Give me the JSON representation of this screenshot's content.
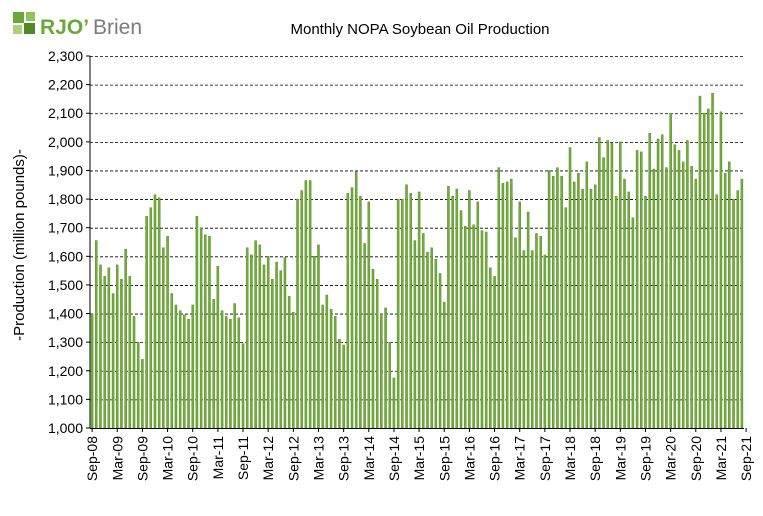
{
  "logo": {
    "text_main": "RJO",
    "text_rest": "Brien",
    "apostrophe": "’"
  },
  "colors": {
    "bar": "#72ad3a",
    "bar_edge": "#4f8422",
    "logo_green": "#6aa83a",
    "logo_gray": "#7b7b7b"
  },
  "chart_data": {
    "type": "bar",
    "title": "Monthly NOPA Soybean Oil Production",
    "ylabel": "-Production (million pounds)-",
    "xlabel": "",
    "ylim": [
      1000,
      2300
    ],
    "yticks": [
      1000,
      1100,
      1200,
      1300,
      1400,
      1500,
      1600,
      1700,
      1800,
      1900,
      2000,
      2100,
      2200,
      2300
    ],
    "ytick_labels": [
      "1,000",
      "1,100",
      "1,200",
      "1,300",
      "1,400",
      "1,500",
      "1,600",
      "1,700",
      "1,800",
      "1,900",
      "2,000",
      "2,100",
      "2,200",
      "2,300"
    ],
    "grid": "horizontal dashed",
    "xtick_labels": [
      "Sep-08",
      "Mar-09",
      "Sep-09",
      "Mar-10",
      "Sep-10",
      "Mar-11",
      "Sep-11",
      "Mar-12",
      "Sep-12",
      "Mar-13",
      "Sep-13",
      "Mar-14",
      "Sep-14",
      "Mar-15",
      "Sep-15",
      "Mar-16",
      "Sep-16",
      "Mar-17",
      "Sep-17",
      "Mar-18",
      "Sep-18",
      "Mar-19",
      "Sep-19",
      "Mar-20",
      "Sep-20",
      "Mar-21",
      "Sep-21"
    ],
    "start_month": "Sep-08",
    "values": [
      1400,
      1655,
      1570,
      1530,
      1560,
      1470,
      1570,
      1520,
      1625,
      1530,
      1390,
      1300,
      1240,
      1740,
      1770,
      1815,
      1805,
      1630,
      1670,
      1470,
      1430,
      1410,
      1395,
      1380,
      1430,
      1740,
      1700,
      1675,
      1670,
      1450,
      1565,
      1410,
      1390,
      1380,
      1435,
      1385,
      1295,
      1630,
      1605,
      1655,
      1640,
      1570,
      1600,
      1520,
      1580,
      1550,
      1595,
      1460,
      1405,
      1800,
      1830,
      1865,
      1865,
      1600,
      1640,
      1430,
      1465,
      1415,
      1390,
      1310,
      1290,
      1820,
      1840,
      1895,
      1810,
      1645,
      1790,
      1555,
      1520,
      1400,
      1420,
      1300,
      1175,
      1800,
      1800,
      1850,
      1820,
      1655,
      1825,
      1680,
      1615,
      1630,
      1590,
      1540,
      1440,
      1845,
      1810,
      1835,
      1760,
      1705,
      1830,
      1710,
      1790,
      1690,
      1685,
      1560,
      1530,
      1910,
      1855,
      1860,
      1870,
      1665,
      1790,
      1620,
      1755,
      1620,
      1680,
      1670,
      1605,
      1900,
      1880,
      1910,
      1880,
      1770,
      1980,
      1860,
      1890,
      1835,
      1930,
      1835,
      1850,
      2015,
      1945,
      2005,
      1995,
      1810,
      2000,
      1870,
      1825,
      1735,
      1970,
      1965,
      1810,
      2030,
      1905,
      2010,
      2025,
      1910,
      2100,
      1990,
      1970,
      1930,
      2005,
      1915,
      1870,
      2160,
      2100,
      2115,
      2170,
      1815,
      2105,
      1890,
      1930,
      1800,
      1830,
      1870
    ]
  }
}
